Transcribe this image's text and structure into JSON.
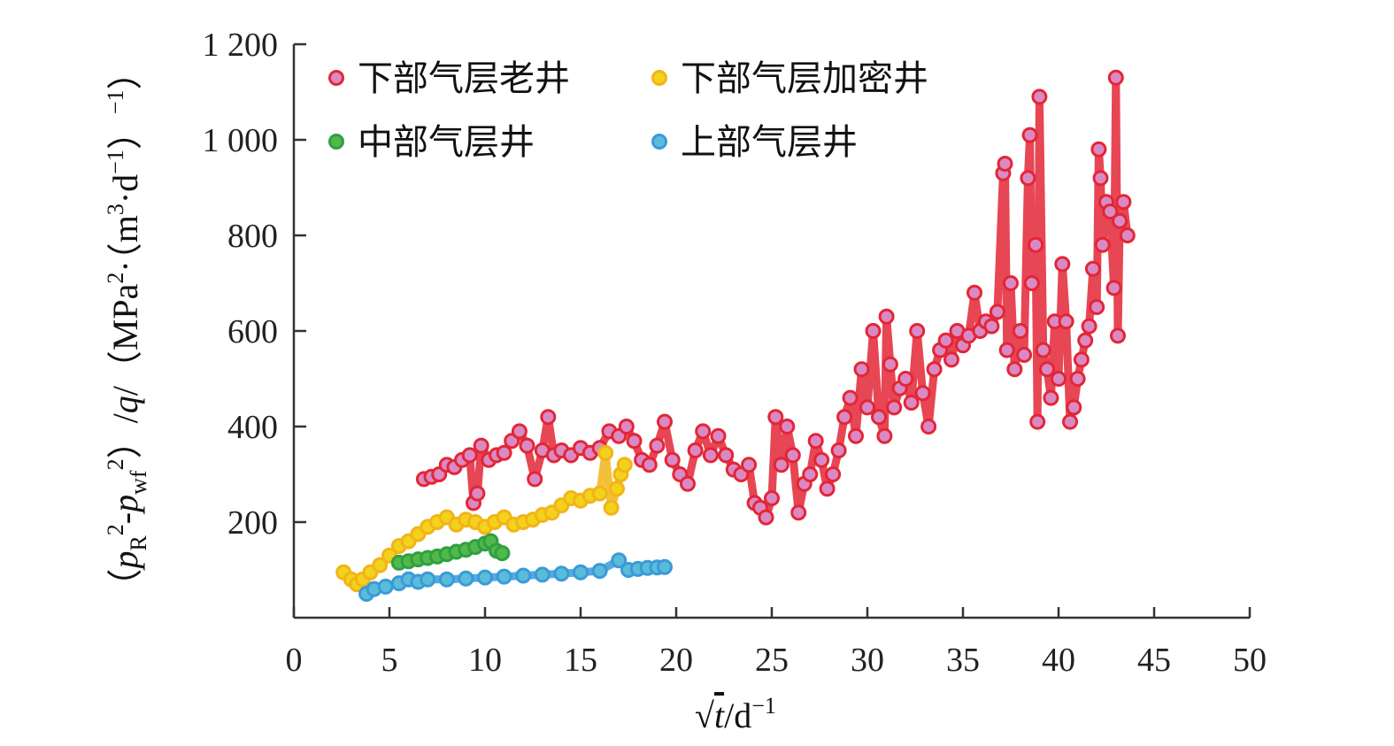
{
  "chart_data": {
    "type": "scatter",
    "xlabel": "√t/d⁻¹",
    "xlabel_parts": {
      "sqrt": "√",
      "var": "t",
      "unit": "/d",
      "sup": "−1"
    },
    "ylabel": "(pR²-pwf²)/q/(MPa²·(m³·d⁻¹)⁻¹)",
    "ylabel_parts": {
      "p1": "p",
      "sub1": "R",
      "sup1": "2",
      "minus": "-",
      "p2": "p",
      "sub2": "wf",
      "sup2": "2",
      "q": "q",
      "unit_mpa": "MPa",
      "unit_m": "m",
      "unit_d": "·d",
      "unit_dsup": "−1",
      "unit_outer_sup": "−1"
    },
    "xlim": [
      0,
      50
    ],
    "ylim": [
      0,
      1200
    ],
    "x_ticks": [
      0,
      5,
      10,
      15,
      20,
      25,
      30,
      35,
      40,
      45,
      50
    ],
    "x_tick_labels": [
      "0",
      "5",
      "10",
      "15",
      "20",
      "25",
      "30",
      "35",
      "40",
      "45",
      "50"
    ],
    "y_ticks": [
      200,
      400,
      600,
      800,
      1000,
      1200
    ],
    "y_tick_labels": [
      "200",
      "400",
      "600",
      "800",
      "1 000",
      "1 200"
    ],
    "grid": false,
    "legend_position": "top-left",
    "series": [
      {
        "name": "下部气层老井",
        "color": "#e32636",
        "marker_fill": "#d98ac4",
        "points": [
          [
            6.8,
            290
          ],
          [
            7.2,
            295
          ],
          [
            7.6,
            300
          ],
          [
            8,
            320
          ],
          [
            8.4,
            315
          ],
          [
            8.8,
            330
          ],
          [
            9.2,
            340
          ],
          [
            9.4,
            240
          ],
          [
            9.6,
            260
          ],
          [
            9.8,
            360
          ],
          [
            10.2,
            330
          ],
          [
            10.6,
            340
          ],
          [
            11,
            345
          ],
          [
            11.4,
            370
          ],
          [
            11.8,
            390
          ],
          [
            12.2,
            360
          ],
          [
            12.6,
            290
          ],
          [
            13,
            350
          ],
          [
            13.3,
            420
          ],
          [
            13.6,
            340
          ],
          [
            14,
            350
          ],
          [
            14.5,
            340
          ],
          [
            15,
            355
          ],
          [
            15.5,
            345
          ],
          [
            16,
            355
          ],
          [
            16.5,
            390
          ],
          [
            17,
            380
          ],
          [
            17.4,
            400
          ],
          [
            17.8,
            370
          ],
          [
            18.2,
            330
          ],
          [
            18.6,
            320
          ],
          [
            19,
            360
          ],
          [
            19.4,
            410
          ],
          [
            19.8,
            330
          ],
          [
            20.2,
            300
          ],
          [
            20.6,
            280
          ],
          [
            21,
            350
          ],
          [
            21.4,
            390
          ],
          [
            21.8,
            340
          ],
          [
            22.2,
            380
          ],
          [
            22.6,
            340
          ],
          [
            23,
            310
          ],
          [
            23.4,
            300
          ],
          [
            23.8,
            320
          ],
          [
            24.1,
            240
          ],
          [
            24.4,
            230
          ],
          [
            24.7,
            210
          ],
          [
            25,
            250
          ],
          [
            25.2,
            420
          ],
          [
            25.5,
            320
          ],
          [
            25.8,
            400
          ],
          [
            26.1,
            340
          ],
          [
            26.4,
            220
          ],
          [
            26.7,
            280
          ],
          [
            27,
            300
          ],
          [
            27.3,
            370
          ],
          [
            27.6,
            330
          ],
          [
            27.9,
            270
          ],
          [
            28.2,
            300
          ],
          [
            28.5,
            350
          ],
          [
            28.8,
            420
          ],
          [
            29.1,
            460
          ],
          [
            29.4,
            380
          ],
          [
            29.7,
            520
          ],
          [
            30,
            440
          ],
          [
            30.3,
            600
          ],
          [
            30.6,
            420
          ],
          [
            30.9,
            380
          ],
          [
            31,
            630
          ],
          [
            31.2,
            530
          ],
          [
            31.4,
            440
          ],
          [
            31.7,
            480
          ],
          [
            32,
            500
          ],
          [
            32.3,
            450
          ],
          [
            32.6,
            600
          ],
          [
            32.9,
            470
          ],
          [
            33.2,
            400
          ],
          [
            33.5,
            520
          ],
          [
            33.8,
            560
          ],
          [
            34.1,
            580
          ],
          [
            34.4,
            540
          ],
          [
            34.7,
            600
          ],
          [
            35,
            570
          ],
          [
            35.3,
            590
          ],
          [
            35.6,
            680
          ],
          [
            35.9,
            600
          ],
          [
            36.2,
            620
          ],
          [
            36.5,
            610
          ],
          [
            36.8,
            640
          ],
          [
            37.1,
            930
          ],
          [
            37.2,
            950
          ],
          [
            37.3,
            560
          ],
          [
            37.5,
            700
          ],
          [
            37.7,
            520
          ],
          [
            38,
            600
          ],
          [
            38.2,
            550
          ],
          [
            38.4,
            920
          ],
          [
            38.5,
            1010
          ],
          [
            38.6,
            700
          ],
          [
            38.8,
            780
          ],
          [
            38.9,
            410
          ],
          [
            39,
            1090
          ],
          [
            39.2,
            560
          ],
          [
            39.4,
            520
          ],
          [
            39.6,
            460
          ],
          [
            39.8,
            620
          ],
          [
            40,
            500
          ],
          [
            40.2,
            740
          ],
          [
            40.4,
            620
          ],
          [
            40.6,
            410
          ],
          [
            40.8,
            440
          ],
          [
            41,
            500
          ],
          [
            41.2,
            540
          ],
          [
            41.4,
            580
          ],
          [
            41.6,
            610
          ],
          [
            41.8,
            730
          ],
          [
            42,
            650
          ],
          [
            42.1,
            980
          ],
          [
            42.2,
            920
          ],
          [
            42.3,
            780
          ],
          [
            42.5,
            870
          ],
          [
            42.7,
            850
          ],
          [
            42.9,
            690
          ],
          [
            43,
            1130
          ],
          [
            43.1,
            590
          ],
          [
            43.2,
            830
          ],
          [
            43.4,
            870
          ],
          [
            43.6,
            800
          ]
        ]
      },
      {
        "name": "下部气层加密井",
        "color": "#f2b418",
        "marker_fill": "#f2d21c",
        "points": [
          [
            2.6,
            95
          ],
          [
            3,
            80
          ],
          [
            3.3,
            70
          ],
          [
            3.6,
            80
          ],
          [
            4,
            95
          ],
          [
            4.5,
            110
          ],
          [
            5,
            130
          ],
          [
            5.5,
            150
          ],
          [
            6,
            160
          ],
          [
            6.5,
            175
          ],
          [
            7,
            190
          ],
          [
            7.5,
            200
          ],
          [
            8,
            210
          ],
          [
            8.5,
            195
          ],
          [
            9,
            205
          ],
          [
            9.5,
            200
          ],
          [
            10,
            190
          ],
          [
            10.5,
            200
          ],
          [
            11,
            210
          ],
          [
            11.5,
            195
          ],
          [
            12,
            200
          ],
          [
            12.5,
            205
          ],
          [
            13,
            215
          ],
          [
            13.5,
            220
          ],
          [
            14,
            235
          ],
          [
            14.5,
            250
          ],
          [
            15,
            245
          ],
          [
            15.5,
            255
          ],
          [
            16,
            260
          ],
          [
            16.3,
            345
          ],
          [
            16.6,
            230
          ],
          [
            16.9,
            270
          ],
          [
            17.1,
            300
          ],
          [
            17.3,
            320
          ]
        ]
      },
      {
        "name": "中部气层井",
        "color": "#2ea043",
        "marker_fill": "#52b848",
        "points": [
          [
            5.5,
            115
          ],
          [
            6,
            118
          ],
          [
            6.5,
            122
          ],
          [
            7,
            125
          ],
          [
            7.5,
            128
          ],
          [
            8,
            133
          ],
          [
            8.5,
            138
          ],
          [
            9,
            142
          ],
          [
            9.5,
            148
          ],
          [
            10,
            155
          ],
          [
            10.3,
            160
          ],
          [
            10.6,
            140
          ],
          [
            10.9,
            135
          ]
        ]
      },
      {
        "name": "上部气层井",
        "color": "#3a9ad9",
        "marker_fill": "#5bbcd9",
        "points": [
          [
            3.8,
            50
          ],
          [
            4.2,
            60
          ],
          [
            4.8,
            65
          ],
          [
            5.5,
            72
          ],
          [
            6,
            80
          ],
          [
            6.5,
            75
          ],
          [
            7,
            80
          ],
          [
            8,
            80
          ],
          [
            9,
            82
          ],
          [
            10,
            84
          ],
          [
            11,
            86
          ],
          [
            12,
            88
          ],
          [
            13,
            90
          ],
          [
            14,
            92
          ],
          [
            15,
            95
          ],
          [
            16,
            98
          ],
          [
            17,
            120
          ],
          [
            17.5,
            100
          ],
          [
            18,
            102
          ],
          [
            18.5,
            104
          ],
          [
            19,
            105
          ],
          [
            19.4,
            106
          ]
        ]
      }
    ]
  }
}
